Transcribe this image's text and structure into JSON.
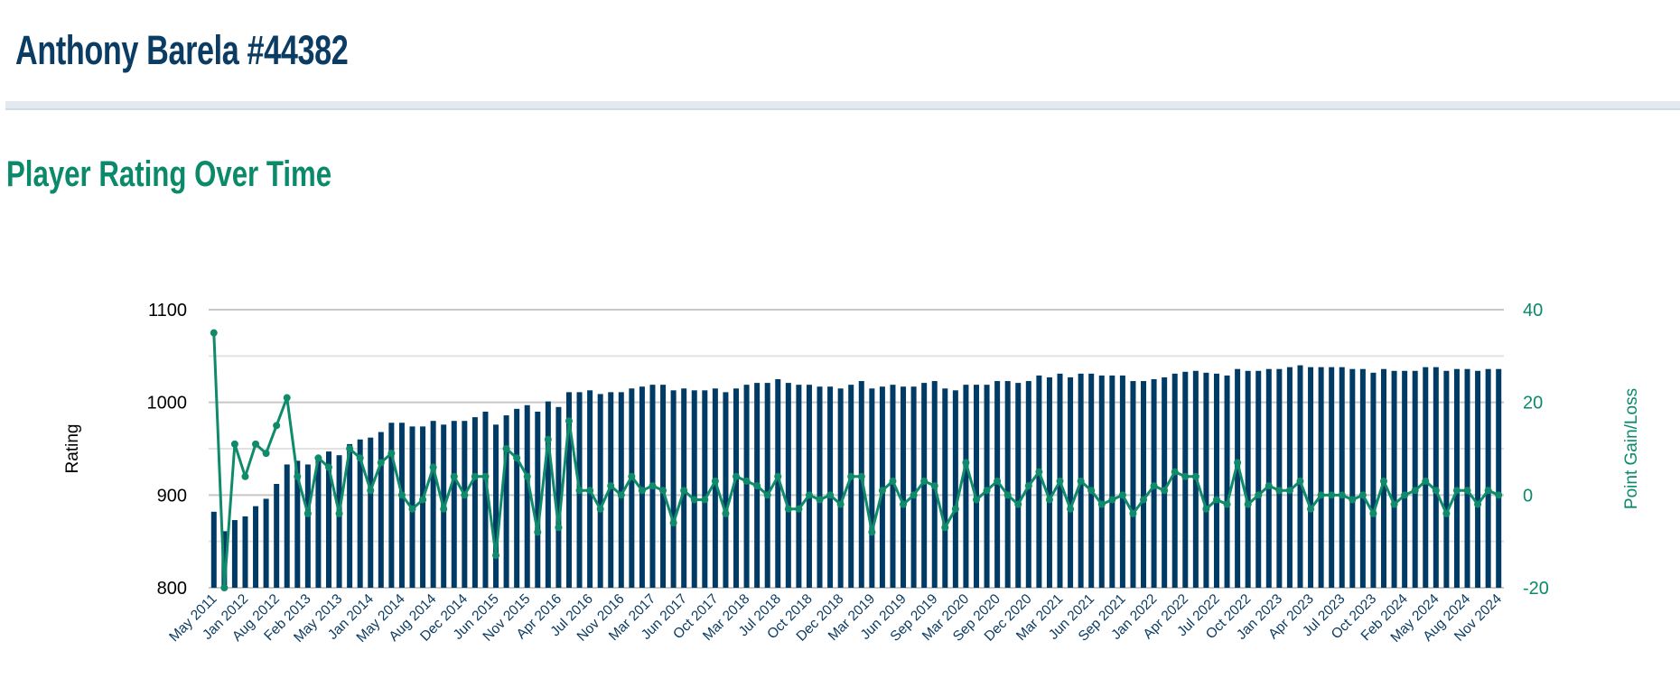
{
  "header": {
    "title": "Anthony Barela #44382"
  },
  "section": {
    "title": "Player Rating Over Time"
  },
  "colors": {
    "bar": "#003b65",
    "line": "#0f8a6b",
    "title": "#0b3c63",
    "accent": "#0b8a6b",
    "grid": "#cfcfcf"
  },
  "chart_data": {
    "type": "bar+line",
    "title": "Player Rating Over Time",
    "ylabel": "Rating",
    "y2label": "Point Gain/Loss",
    "ylim": [
      800,
      1100
    ],
    "y2lim": [
      -20,
      40
    ],
    "y_ticks": [
      "800",
      "900",
      "1000",
      "1100"
    ],
    "y2_ticks": [
      "-20",
      "0",
      "20",
      "40"
    ],
    "grid": true,
    "tick_every": 3,
    "tick_labels": [
      "May 2011",
      "Jan 2012",
      "Aug 2012",
      "Feb 2013",
      "May 2013",
      "Jan 2014",
      "May 2014",
      "Aug 2014",
      "Dec 2014",
      "Jun 2015",
      "Nov 2015",
      "Apr 2016",
      "Jul 2016",
      "Nov 2016",
      "Mar 2017",
      "Jun 2017",
      "Oct 2017",
      "Mar 2018",
      "Jul 2018",
      "Oct 2018",
      "Dec 2018",
      "Mar 2019",
      "Jun 2019",
      "Sep 2019",
      "Mar 2020",
      "Sep 2020",
      "Dec 2020",
      "Mar 2021",
      "Jun 2021",
      "Sep 2021",
      "Jan 2022",
      "Apr 2022",
      "Jul 2022",
      "Oct 2022",
      "Jan 2023",
      "Apr 2023",
      "Jul 2023",
      "Oct 2023",
      "Feb 2024",
      "May 2024",
      "Aug 2024",
      "Nov 2024"
    ],
    "series": [
      {
        "name": "Rating",
        "type": "bar",
        "axis": "left",
        "values": [
          882,
          861,
          873,
          877,
          888,
          896,
          912,
          933,
          937,
          933,
          940,
          947,
          943,
          955,
          960,
          962,
          968,
          978,
          978,
          974,
          974,
          980,
          976,
          980,
          980,
          984,
          990,
          976,
          986,
          993,
          997,
          990,
          1001,
          995,
          1011,
          1011,
          1013,
          1009,
          1011,
          1011,
          1015,
          1017,
          1019,
          1019,
          1013,
          1015,
          1013,
          1013,
          1015,
          1011,
          1015,
          1019,
          1021,
          1021,
          1025,
          1021,
          1019,
          1019,
          1017,
          1017,
          1015,
          1019,
          1023,
          1015,
          1017,
          1019,
          1017,
          1017,
          1021,
          1023,
          1015,
          1013,
          1019,
          1019,
          1019,
          1023,
          1023,
          1021,
          1023,
          1029,
          1027,
          1031,
          1027,
          1031,
          1031,
          1029,
          1029,
          1029,
          1023,
          1023,
          1025,
          1027,
          1031,
          1033,
          1034,
          1032,
          1031,
          1029,
          1036,
          1034,
          1034,
          1036,
          1036,
          1038,
          1040,
          1038,
          1038,
          1038,
          1038,
          1036,
          1036,
          1032,
          1036,
          1034,
          1034,
          1034,
          1038,
          1038,
          1034,
          1036,
          1036,
          1034,
          1036,
          1036
        ]
      },
      {
        "name": "Point Gain/Loss",
        "type": "line",
        "axis": "right",
        "values": [
          35,
          -20,
          11,
          4,
          11,
          9,
          15,
          21,
          4,
          -4,
          8,
          6,
          -4,
          10,
          8,
          1,
          7,
          9,
          0,
          -3,
          -1,
          6,
          -3,
          4,
          0,
          4,
          4,
          -13,
          10,
          8,
          4,
          -8,
          12,
          -7,
          16,
          1,
          1,
          -3,
          2,
          0,
          4,
          1,
          2,
          1,
          -6,
          1,
          -1,
          -1,
          3,
          -4,
          4,
          3,
          2,
          0,
          4,
          -3,
          -3,
          0,
          -1,
          0,
          -2,
          4,
          4,
          -8,
          1,
          3,
          -2,
          0,
          3,
          2,
          -7,
          -3,
          7,
          -1,
          1,
          3,
          0,
          -2,
          2,
          5,
          -1,
          3,
          -3,
          3,
          1,
          -2,
          -1,
          0,
          -4,
          -1,
          2,
          1,
          5,
          4,
          4,
          -3,
          -1,
          -2,
          7,
          -2,
          0,
          2,
          1,
          1,
          3,
          -3,
          0,
          0,
          0,
          -1,
          0,
          -4,
          3,
          -2,
          0,
          1,
          3,
          1,
          -4,
          1,
          1,
          -2,
          1,
          0
        ]
      }
    ]
  }
}
